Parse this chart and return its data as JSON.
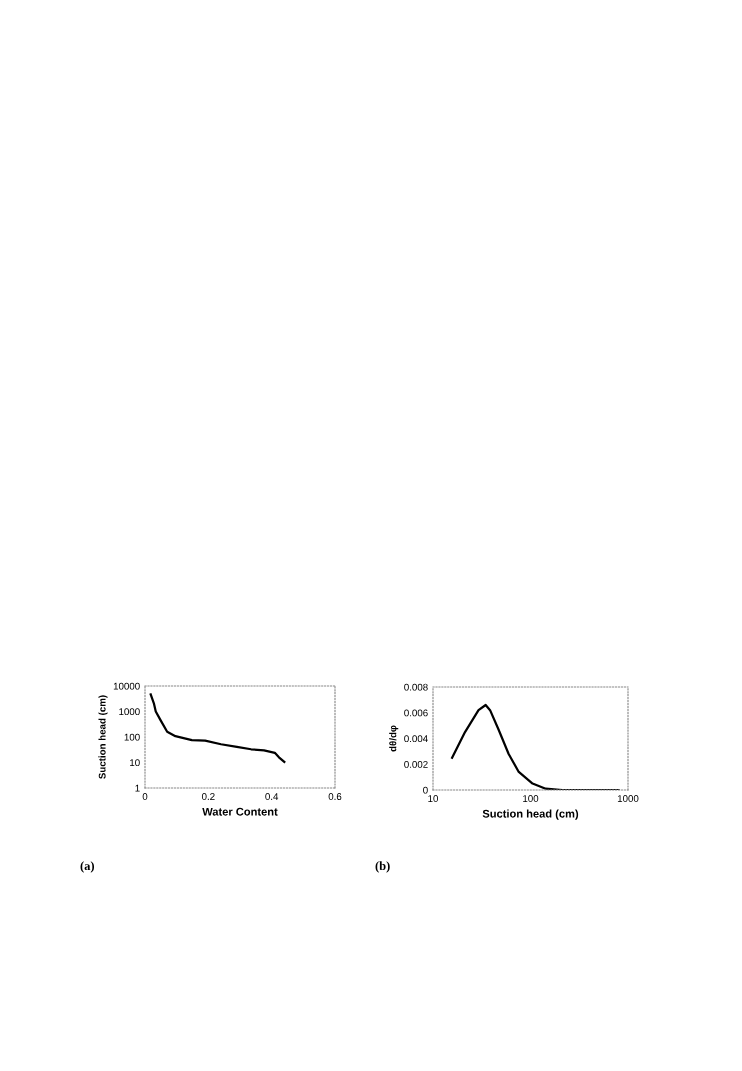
{
  "chart_data": [
    {
      "type": "line",
      "xlabel": "Water Content",
      "ylabel": "Suction head (cm)",
      "annotations": [
        "(a)"
      ],
      "log": "y",
      "xlim": [
        0,
        0.6
      ],
      "xticks": [
        0,
        0.2,
        0.4,
        0.6
      ],
      "ylim": [
        1,
        10000
      ],
      "yticks": [
        1,
        10,
        100,
        1000,
        10000
      ],
      "grid": false,
      "legend": false,
      "marker": "none",
      "line_style": "solid",
      "series": [
        {
          "color": "#000000",
          "x": [
            0.018,
            0.028,
            0.034,
            0.049,
            0.07,
            0.096,
            0.148,
            0.19,
            0.24,
            0.29,
            0.335,
            0.376,
            0.41,
            0.423,
            0.44
          ],
          "values": [
            4700,
            2100,
            1000,
            460,
            160,
            108,
            75,
            72,
            52,
            41,
            33,
            30,
            24,
            16,
            10.5
          ]
        }
      ]
    },
    {
      "type": "line",
      "xlabel": "Suction head (cm)",
      "ylabel": "dθ/dφ",
      "annotations": [
        "(b)"
      ],
      "log": "x",
      "xlim": [
        10,
        1000
      ],
      "xticks": [
        10,
        100,
        1000
      ],
      "ylim": [
        0,
        0.008
      ],
      "yticks": [
        {
          "value": 0,
          "label": "0"
        },
        0.002,
        0.004,
        0.006,
        0.008
      ],
      "grid": false,
      "legend": false,
      "marker": "none",
      "line_style": "solid",
      "series": [
        {
          "color": "#000000",
          "x": [
            15.7,
            21.3,
            29.3,
            34.7,
            38.5,
            47,
            59.7,
            75.8,
            105,
            143,
            212,
            700,
            800
          ],
          "values": [
            0.0025,
            0.0045,
            0.0062,
            0.0066,
            0.0062,
            0.0047,
            0.0028,
            0.0014,
            0.0005,
            0.0001,
            0,
            0,
            0
          ]
        }
      ]
    }
  ]
}
